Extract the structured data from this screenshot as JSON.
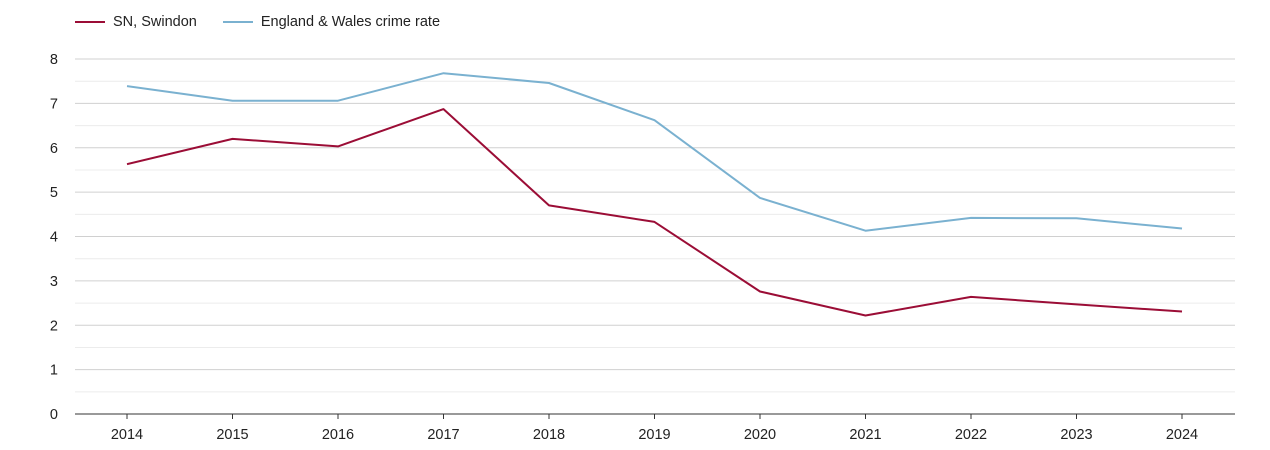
{
  "chart_data": {
    "type": "line",
    "title": "",
    "xlabel": "",
    "ylabel": "",
    "x": [
      "2014",
      "2015",
      "2016",
      "2017",
      "2018",
      "2019",
      "2020",
      "2021",
      "2022",
      "2023",
      "2024"
    ],
    "ylim": [
      0,
      8
    ],
    "yticks": [
      0,
      1,
      2,
      3,
      4,
      5,
      6,
      7,
      8
    ],
    "grid": true,
    "legend": "top-left",
    "series": [
      {
        "name": "SN, Swindon",
        "color": "#9b0d36",
        "values": [
          5.63,
          6.2,
          6.03,
          6.87,
          4.7,
          4.33,
          2.76,
          2.22,
          2.64,
          2.47,
          2.31
        ]
      },
      {
        "name": "England & Wales crime rate",
        "color": "#7ab1d0",
        "values": [
          7.39,
          7.06,
          7.06,
          7.68,
          7.46,
          6.62,
          4.87,
          4.13,
          4.42,
          4.41,
          4.18
        ]
      }
    ]
  }
}
